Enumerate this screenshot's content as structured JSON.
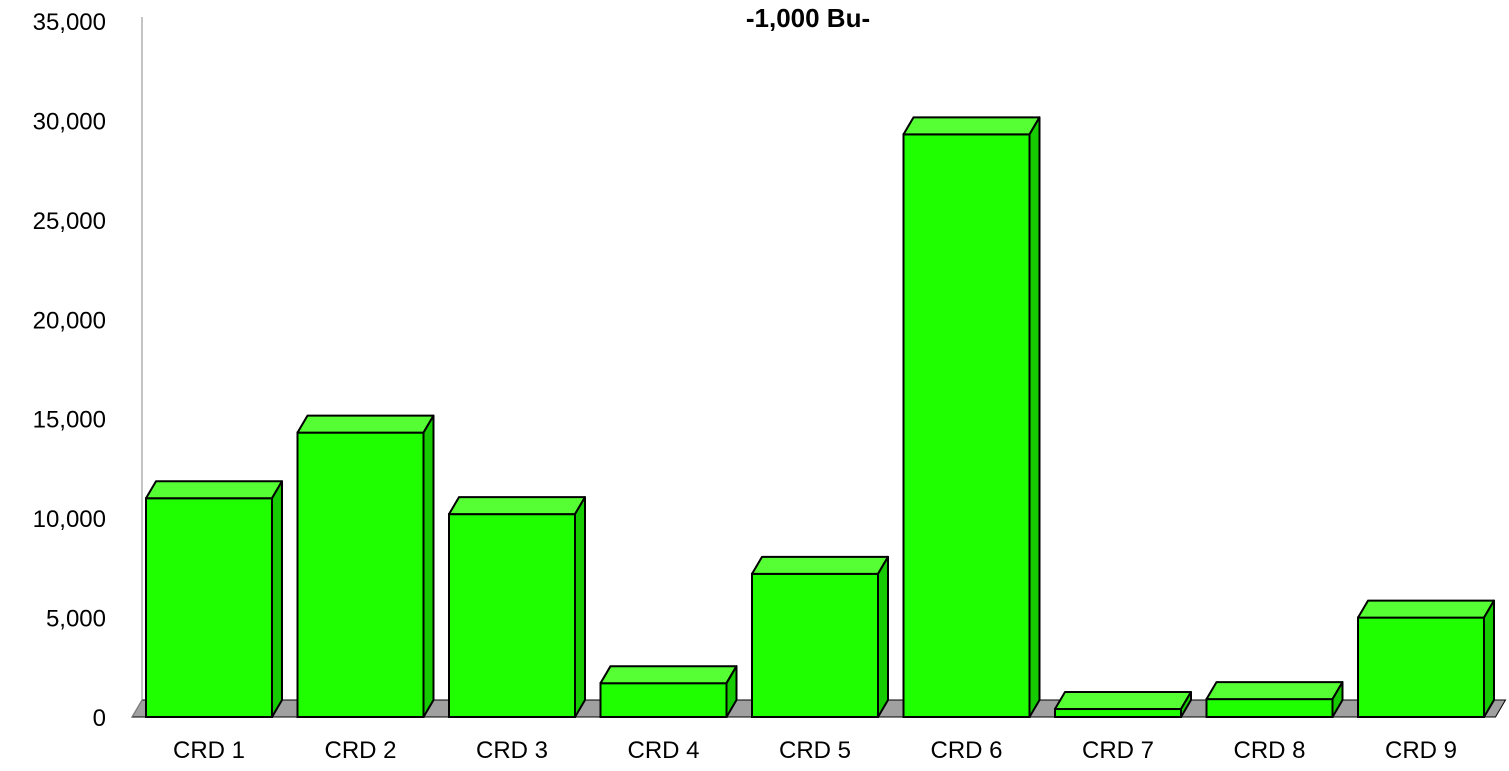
{
  "chart_data": {
    "type": "bar",
    "style": "3d-column",
    "title": "-1,000 Bu-",
    "xlabel": "",
    "ylabel": "",
    "categories": [
      "CRD 1",
      "CRD 2",
      "CRD 3",
      "CRD 4",
      "CRD 5",
      "CRD 6",
      "CRD 7",
      "CRD 8",
      "CRD 9"
    ],
    "values": [
      11000,
      14300,
      10200,
      1700,
      7200,
      29300,
      400,
      900,
      5000
    ],
    "ylim": [
      0,
      35000
    ],
    "yticks": [
      0,
      5000,
      10000,
      15000,
      20000,
      25000,
      30000,
      35000
    ],
    "ytick_labels": [
      "0",
      "5,000",
      "10,000",
      "15,000",
      "20,000",
      "25,000",
      "30,000",
      "35,000"
    ],
    "grid": false,
    "legend": "none",
    "colors": {
      "bar_front": "#1fff00",
      "bar_top": "#55ff33",
      "bar_side": "#16cc00",
      "floor": "#a0a0a0",
      "outline": "#000000"
    }
  }
}
